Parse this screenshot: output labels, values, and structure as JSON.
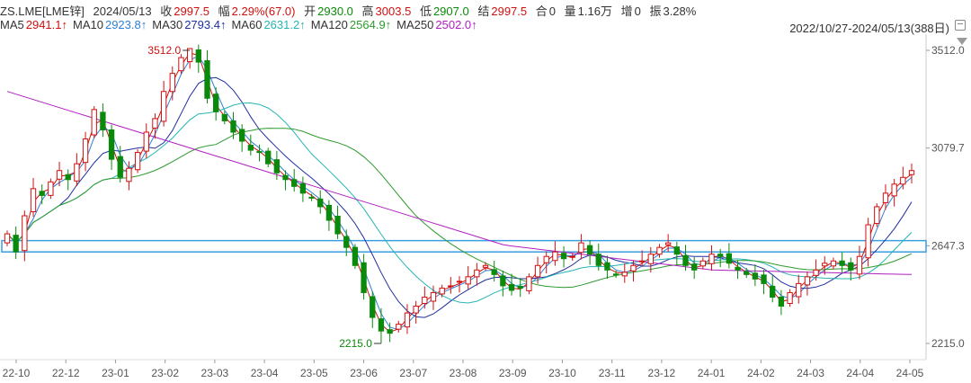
{
  "header": {
    "symbol": "ZS.LME[LME锌]",
    "date": "2024/05/13",
    "close_label": "收",
    "close_value": "2997.5",
    "change_label": "幅",
    "change_value": "2.29%(67.0)",
    "open_label": "开",
    "open_value": "2930.0",
    "high_label": "高",
    "high_value": "3003.5",
    "low_label": "低",
    "low_value": "2907.0",
    "settle_label": "结",
    "settle_value": "2997.5",
    "oi_label": "合",
    "oi_value": "0",
    "volume_label": "量",
    "volume_value": "1.16万",
    "add_label": "增",
    "add_value": "0",
    "amp_label": "振",
    "amp_value": "3.28%",
    "range": "2022/10/27-2024/05/13(388日)"
  },
  "ma": [
    {
      "name": "MA5",
      "value": "2941.1↑",
      "color": "#d01010"
    },
    {
      "name": "MA10",
      "value": "2923.8↑",
      "color": "#2f7fd8"
    },
    {
      "name": "MA30",
      "value": "2793.4↑",
      "color": "#1f2fa0"
    },
    {
      "name": "MA60",
      "value": "2631.2↑",
      "color": "#26b5b5"
    },
    {
      "name": "MA120",
      "value": "2564.9↑",
      "color": "#2e9a2e"
    },
    {
      "name": "MA250",
      "value": "2502.0↑",
      "color": "#b020c0"
    }
  ],
  "colors": {
    "up": "#d01010",
    "down": "#0a8a0a",
    "box": "#3a9ee0"
  },
  "chart_data": {
    "type": "candlestick",
    "ylim": [
      2215.0,
      3512.0
    ],
    "y_ticks": [
      "3512.0",
      "3079.7",
      "2647.3",
      "2215.0"
    ],
    "x_ticks": [
      "22-10",
      "22-12",
      "23-01",
      "23-02",
      "23-03",
      "23-04",
      "23-05",
      "23-06",
      "23-07",
      "23-08",
      "23-09",
      "23-10",
      "23-11",
      "23-12",
      "24-01",
      "24-02",
      "24-03",
      "24-04",
      "24-05"
    ],
    "annotations": [
      {
        "text": "3512.0",
        "value": 3512.0,
        "date_index": 24
      },
      {
        "text": "2215.0",
        "value": 2215.0,
        "date_index": 45
      }
    ],
    "highlight_band": [
      2620,
      2670
    ],
    "close_series": [
      2700,
      2620,
      2780,
      2900,
      2870,
      2930,
      2980,
      2940,
      3010,
      3120,
      3250,
      3160,
      3030,
      2950,
      2990,
      3060,
      3150,
      3210,
      3330,
      3410,
      3480,
      3520,
      3460,
      3300,
      3240,
      3200,
      3150,
      3110,
      3070,
      3060,
      3010,
      2970,
      2940,
      2910,
      2880,
      2860,
      2820,
      2760,
      2700,
      2640,
      2560,
      2440,
      2330,
      2270,
      2260,
      2300,
      2350,
      2380,
      2420,
      2440,
      2460,
      2470,
      2490,
      2510,
      2540,
      2560,
      2520,
      2470,
      2450,
      2460,
      2510,
      2560,
      2600,
      2620,
      2590,
      2600,
      2660,
      2610,
      2560,
      2540,
      2520,
      2530,
      2560,
      2580,
      2610,
      2640,
      2660,
      2610,
      2560,
      2540,
      2580,
      2610,
      2600,
      2570,
      2540,
      2520,
      2500,
      2480,
      2420,
      2380,
      2440,
      2480,
      2510,
      2540,
      2570,
      2580,
      2560,
      2540,
      2600,
      2740,
      2820,
      2880,
      2920,
      2950,
      2980
    ]
  }
}
